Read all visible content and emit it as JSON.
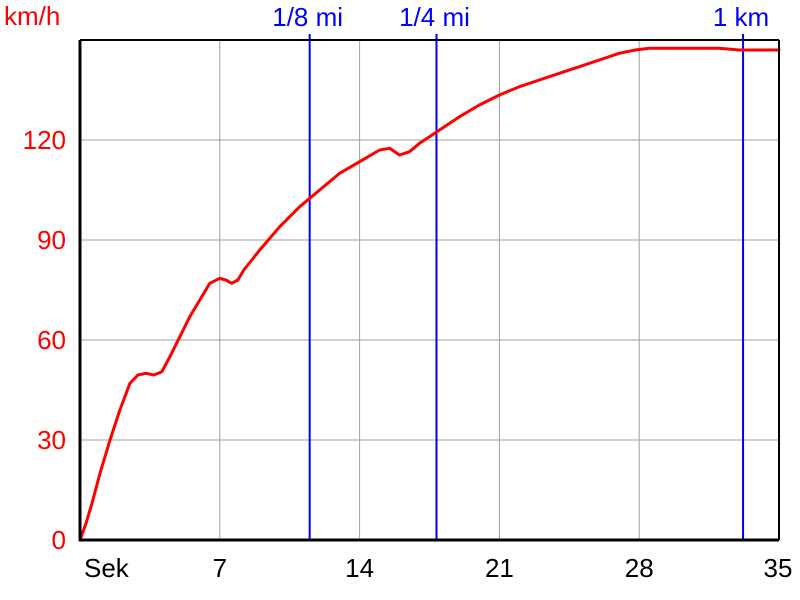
{
  "chart_data": {
    "type": "line",
    "title": "",
    "xlabel": "Sek",
    "ylabel": "km/h",
    "xlim": [
      0,
      35
    ],
    "ylim": [
      0,
      150
    ],
    "x_ticks": [
      7,
      14,
      21,
      28,
      35
    ],
    "y_ticks": [
      0,
      30,
      60,
      90,
      120
    ],
    "grid": true,
    "series": [
      {
        "color": "#ff0000",
        "x": [
          0,
          0.3,
          0.6,
          1.0,
          1.5,
          2.0,
          2.5,
          2.9,
          3.3,
          3.7,
          4.1,
          4.5,
          5.0,
          5.5,
          6.0,
          6.5,
          7.0,
          7.3,
          7.6,
          7.9,
          8.2,
          8.6,
          9.0,
          10.0,
          11.0,
          11.5,
          12.0,
          13.0,
          14.0,
          15.0,
          15.5,
          16.0,
          16.5,
          17.0,
          17.5,
          18.0,
          19.0,
          20.0,
          21.0,
          22.0,
          23.0,
          24.0,
          25.0,
          26.0,
          27.0,
          27.8,
          28.5,
          30.0,
          31.0,
          32.0,
          33.0,
          34.0,
          35.0
        ],
        "values": [
          0,
          5,
          11,
          20,
          30,
          39,
          47,
          49.5,
          50,
          49.5,
          50.5,
          55,
          61,
          67,
          72,
          77,
          78.5,
          78,
          77,
          78,
          81,
          84,
          87,
          94,
          100,
          102.5,
          105,
          110,
          113.5,
          117,
          117.5,
          115.5,
          116.5,
          119,
          121,
          123,
          127,
          130.5,
          133.5,
          136,
          138,
          140,
          142,
          144,
          146,
          147,
          147.5,
          147.5,
          147.5,
          147.5,
          147,
          147,
          147
        ]
      }
    ],
    "markers": [
      {
        "label": "1/8 mi",
        "x": 11.5,
        "color": "#0000ff"
      },
      {
        "label": "1/4 mi",
        "x": 17.85,
        "color": "#0000ff"
      },
      {
        "label": "1 km",
        "x": 33.2,
        "color": "#0000ff"
      }
    ],
    "colors": {
      "axis_label": "#ff0000",
      "tick_x": "#000000",
      "tick_y": "#ff0000",
      "grid": "#a0a0a0",
      "marker": "#0000ff",
      "line": "#ff0000"
    }
  }
}
